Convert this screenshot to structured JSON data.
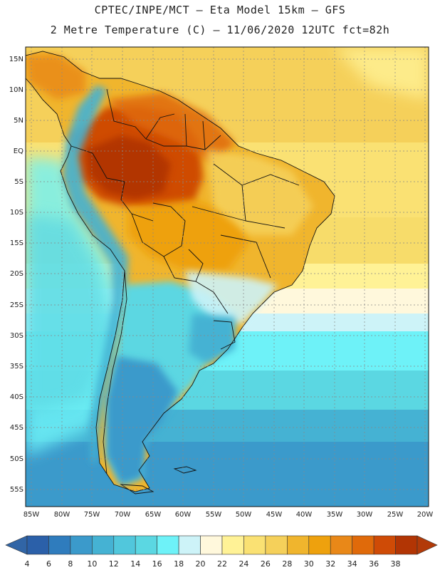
{
  "header": {
    "line1": "CPTEC/INPE/MCT –  Eta Model 15km – GFS",
    "line2": "2 Metre Temperature (C) – 11/06/2020 12UTC fct=82h"
  },
  "map": {
    "lat_labels": [
      "15N",
      "10N",
      "5N",
      "EQ",
      "5S",
      "10S",
      "15S",
      "20S",
      "25S",
      "30S",
      "35S",
      "40S",
      "45S",
      "50S",
      "55S"
    ],
    "lon_labels": [
      "85W",
      "80W",
      "75W",
      "70W",
      "65W",
      "60W",
      "55W",
      "50W",
      "45W",
      "40W",
      "35W",
      "30W",
      "25W",
      "20W"
    ],
    "lat_values": [
      15,
      10,
      5,
      0,
      -5,
      -10,
      -15,
      -20,
      -25,
      -30,
      -35,
      -40,
      -45,
      -50,
      -55
    ],
    "lon_values": [
      -85,
      -80,
      -75,
      -70,
      -65,
      -60,
      -55,
      -50,
      -45,
      -40,
      -35,
      -30,
      -25,
      -20
    ]
  },
  "colorbar": {
    "labels": [
      "4",
      "6",
      "8",
      "10",
      "12",
      "14",
      "16",
      "18",
      "20",
      "22",
      "24",
      "26",
      "28",
      "30",
      "32",
      "34",
      "36",
      "38"
    ],
    "colors": [
      "#2b60a9",
      "#2f7cbd",
      "#3b9acb",
      "#45b2d3",
      "#51c7dc",
      "#5bd7e2",
      "#6ef2f8",
      "#cdf3f8",
      "#fff8dc",
      "#fff296",
      "#fae173",
      "#f5d05a",
      "#f0b52d",
      "#eea10d",
      "#e98818",
      "#e06a0a",
      "#cf4b06",
      "#b23504"
    ],
    "low_arrow_color": "#3165a6",
    "high_arrow_color": "#b23a08"
  }
}
